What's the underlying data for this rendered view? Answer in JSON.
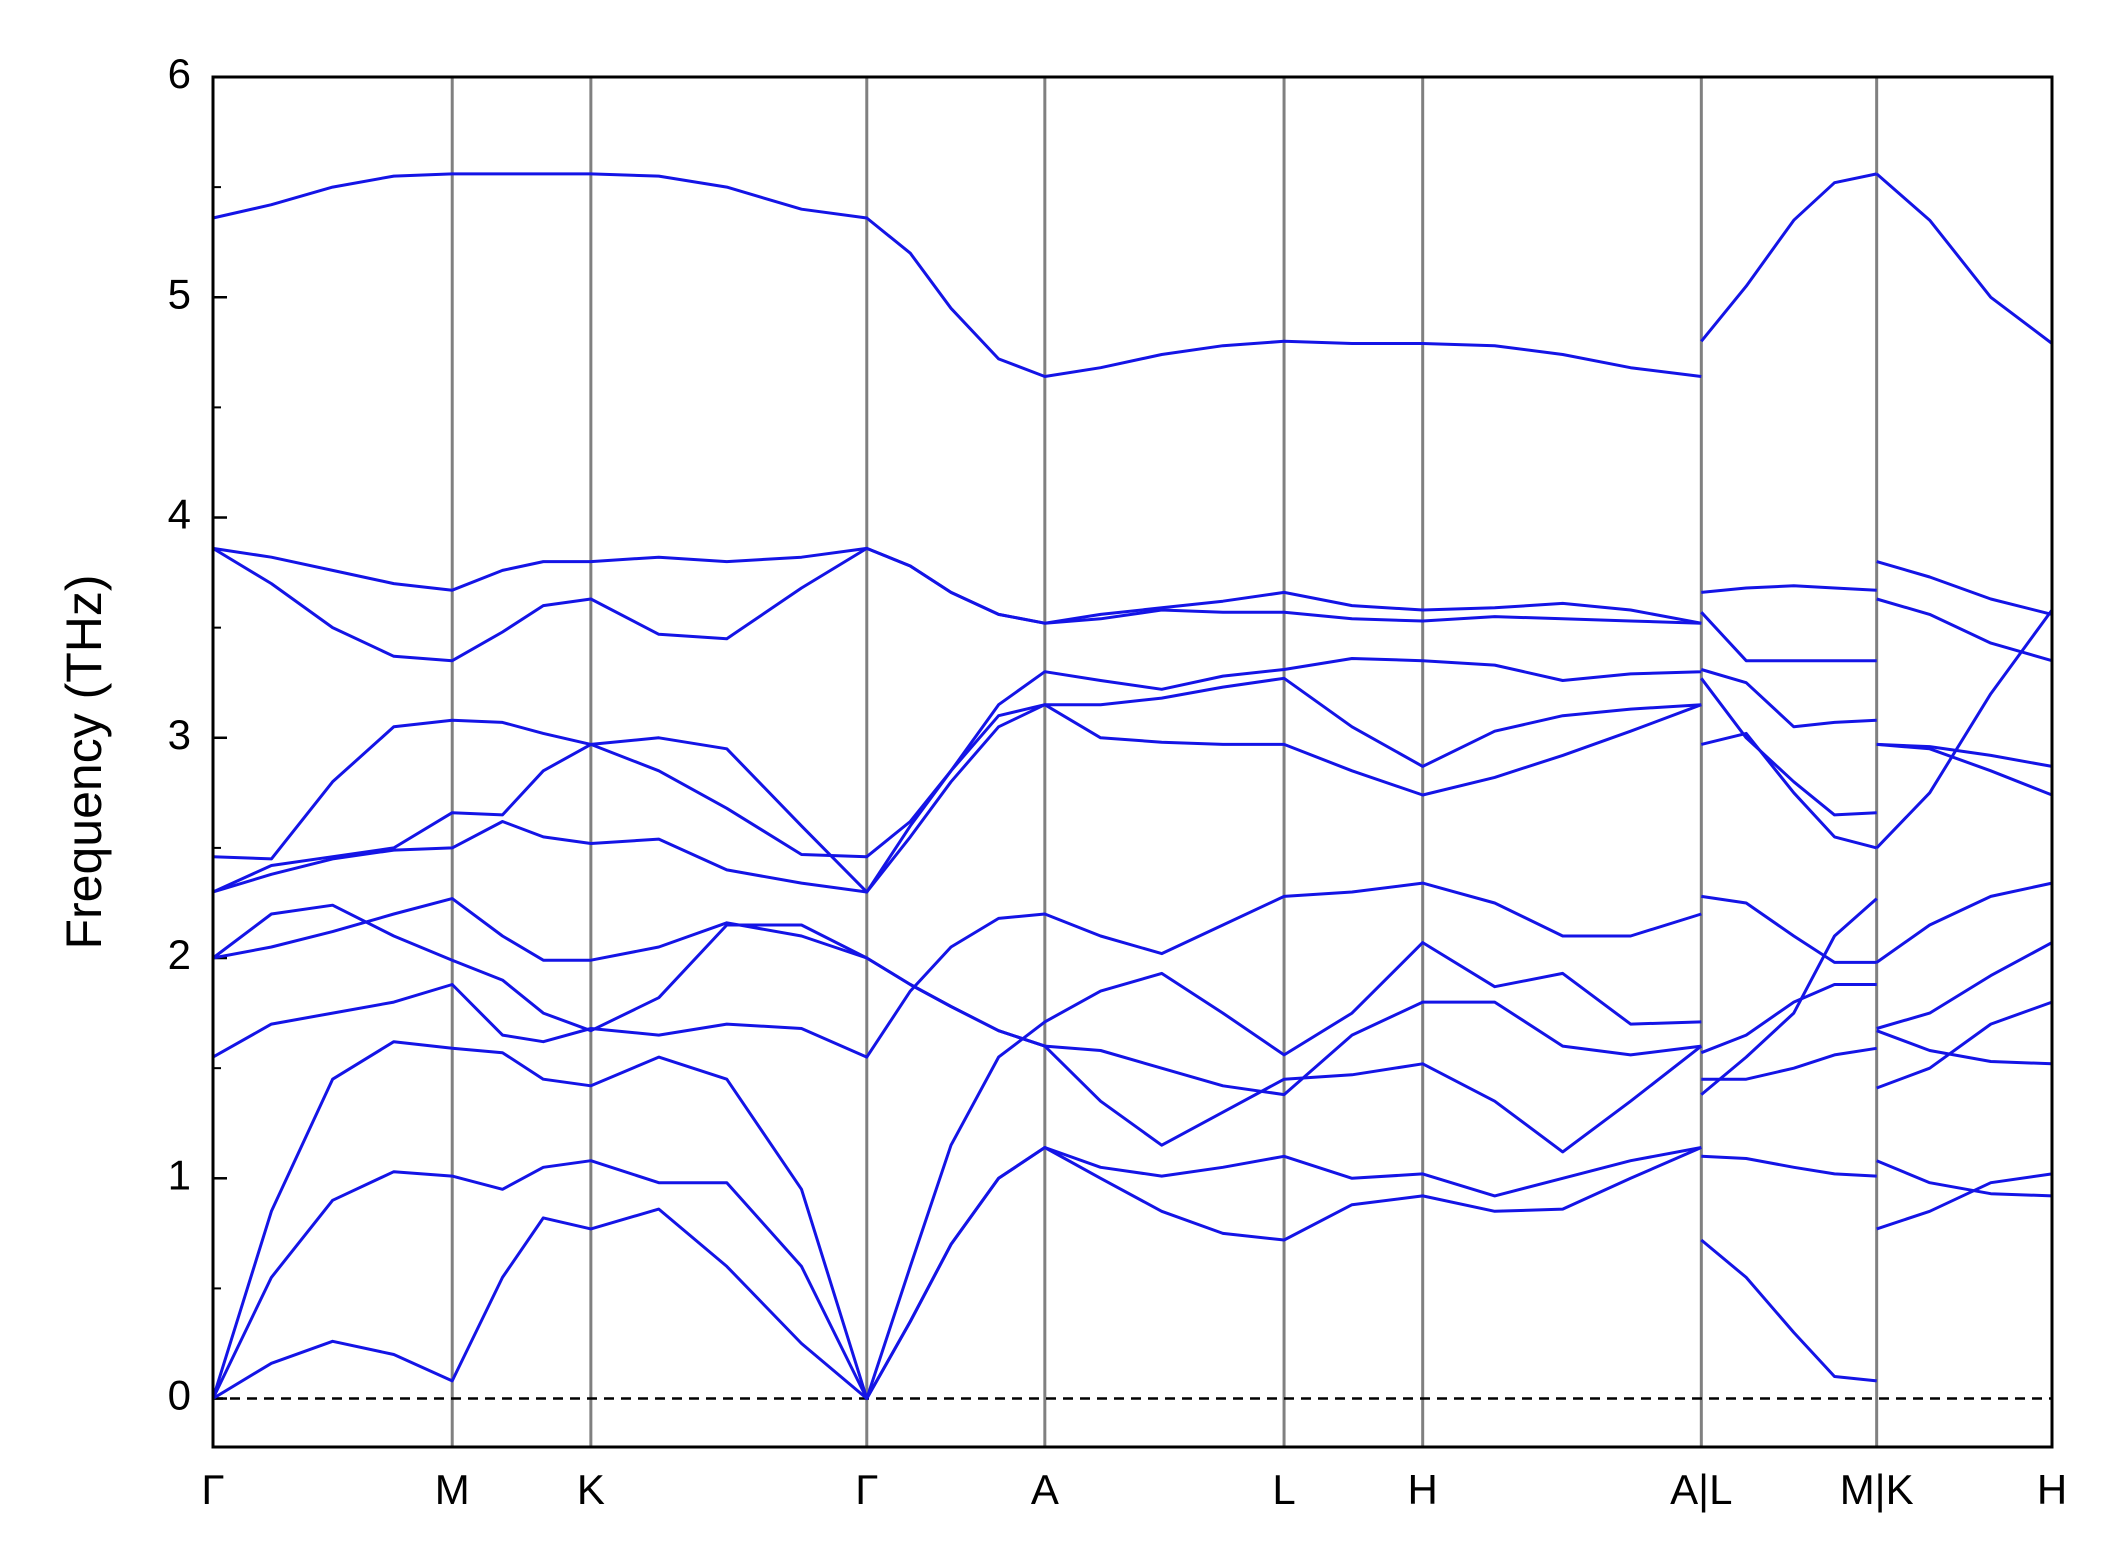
{
  "chart_data": {
    "type": "line",
    "ylabel": "Frequency (THz)",
    "color": "#1414e6",
    "xlim": [
      0,
      1353
    ],
    "ylim": [
      -0.22,
      6
    ],
    "xticks": [
      {
        "value": 0,
        "label": "Γ"
      },
      {
        "value": 176,
        "label": "M"
      },
      {
        "value": 278,
        "label": "K"
      },
      {
        "value": 481,
        "label": "Γ"
      },
      {
        "value": 612,
        "label": "A"
      },
      {
        "value": 788,
        "label": "L"
      },
      {
        "value": 890,
        "label": "H"
      },
      {
        "value": 1095,
        "label": "A|L"
      },
      {
        "value": 1224,
        "label": "M|K"
      },
      {
        "value": 1353,
        "label": "H"
      }
    ],
    "yticks": [
      0,
      1,
      2,
      3,
      4,
      5,
      6
    ],
    "yminorticks": [
      0.5,
      1.5,
      2.5,
      3.5,
      4.5,
      5.5
    ],
    "hlines": [
      0
    ],
    "x": [
      0,
      43,
      88,
      133,
      176,
      213,
      243,
      278,
      328,
      378,
      433,
      481,
      513,
      543,
      578,
      612,
      653,
      698,
      743,
      788,
      838,
      890,
      943,
      993,
      1043,
      1095,
      1095,
      1095,
      1128,
      1163,
      1193,
      1224,
      1224,
      1224,
      1263,
      1308,
      1353
    ],
    "series": [
      {
        "values": [
          5.36,
          5.42,
          5.5,
          5.55,
          5.56,
          5.56,
          5.56,
          5.56,
          5.55,
          5.5,
          5.4,
          5.36,
          5.2,
          4.95,
          4.72,
          4.64,
          4.68,
          4.74,
          4.78,
          4.8,
          4.79,
          4.79,
          4.78,
          4.74,
          4.68,
          4.64,
          null,
          4.8,
          5.05,
          5.35,
          5.52,
          5.56,
          null,
          5.56,
          5.35,
          5.0,
          4.79
        ]
      },
      {
        "values": [
          3.86,
          3.82,
          3.76,
          3.7,
          3.67,
          3.76,
          3.8,
          3.8,
          3.82,
          3.8,
          3.82,
          3.86,
          3.78,
          3.66,
          3.56,
          3.52,
          3.56,
          3.59,
          3.62,
          3.66,
          3.6,
          3.58,
          3.59,
          3.61,
          3.58,
          3.52,
          null,
          3.66,
          3.68,
          3.69,
          3.68,
          3.67,
          null,
          3.8,
          3.73,
          3.63,
          3.56
        ]
      },
      {
        "values": [
          3.86,
          3.7,
          3.5,
          3.37,
          3.35,
          3.48,
          3.6,
          3.63,
          3.47,
          3.45,
          3.68,
          3.86,
          3.78,
          3.66,
          3.56,
          3.52,
          3.54,
          3.58,
          3.57,
          3.57,
          3.54,
          3.53,
          3.55,
          3.54,
          3.53,
          3.52,
          null,
          3.57,
          3.35,
          3.35,
          3.35,
          3.35,
          null,
          3.63,
          3.56,
          3.43,
          3.35
        ]
      },
      {
        "values": [
          2.46,
          2.45,
          2.8,
          3.05,
          3.08,
          3.07,
          3.02,
          2.97,
          2.85,
          2.68,
          2.47,
          2.46,
          2.62,
          2.85,
          3.15,
          3.3,
          3.26,
          3.22,
          3.28,
          3.31,
          3.36,
          3.35,
          3.33,
          3.26,
          3.29,
          3.3,
          null,
          3.31,
          3.25,
          3.05,
          3.07,
          3.08,
          null,
          2.97,
          2.96,
          2.92,
          2.87
        ]
      },
      {
        "values": [
          2.3,
          2.42,
          2.46,
          2.5,
          2.66,
          2.65,
          2.85,
          2.97,
          3.0,
          2.95,
          2.6,
          2.3,
          2.6,
          2.85,
          3.1,
          3.15,
          3.15,
          3.18,
          3.23,
          3.27,
          3.05,
          2.87,
          3.03,
          3.1,
          3.13,
          3.15,
          null,
          3.27,
          3.0,
          2.8,
          2.65,
          2.66,
          null,
          2.97,
          2.95,
          2.85,
          2.74
        ]
      },
      {
        "values": [
          2.3,
          2.38,
          2.45,
          2.49,
          2.5,
          2.62,
          2.55,
          2.52,
          2.54,
          2.4,
          2.34,
          2.3,
          2.55,
          2.8,
          3.05,
          3.15,
          3.0,
          2.98,
          2.97,
          2.97,
          2.85,
          2.74,
          2.82,
          2.92,
          3.03,
          3.15,
          null,
          2.97,
          3.02,
          2.75,
          2.55,
          2.5,
          null,
          2.5,
          2.75,
          3.2,
          3.58
        ]
      },
      {
        "values": [
          2.0,
          2.05,
          2.12,
          2.2,
          2.27,
          2.1,
          1.99,
          1.99,
          2.05,
          2.16,
          2.1,
          2.0,
          1.88,
          1.78,
          1.67,
          1.6,
          1.58,
          1.5,
          1.42,
          1.38,
          1.65,
          1.8,
          1.8,
          1.6,
          1.56,
          1.6,
          null,
          1.57,
          1.65,
          1.8,
          1.88,
          1.88,
          null,
          1.68,
          1.75,
          1.92,
          2.07
        ]
      },
      {
        "values": [
          2.0,
          2.2,
          2.24,
          2.1,
          1.99,
          1.9,
          1.75,
          1.67,
          1.82,
          2.15,
          2.15,
          2.0,
          1.88,
          1.78,
          1.67,
          1.6,
          1.35,
          1.15,
          1.3,
          1.45,
          1.47,
          1.52,
          1.35,
          1.12,
          1.35,
          1.6,
          null,
          1.45,
          1.45,
          1.5,
          1.56,
          1.59,
          null,
          1.67,
          1.58,
          1.53,
          1.52
        ]
      },
      {
        "values": [
          1.55,
          1.7,
          1.75,
          1.8,
          1.88,
          1.65,
          1.62,
          1.68,
          1.65,
          1.7,
          1.68,
          1.55,
          1.85,
          2.05,
          2.18,
          2.2,
          2.1,
          2.02,
          2.15,
          2.28,
          2.3,
          2.34,
          2.25,
          2.1,
          2.1,
          2.2,
          null,
          2.28,
          2.25,
          2.1,
          1.98,
          1.98,
          null,
          1.98,
          2.15,
          2.28,
          2.34
        ]
      },
      {
        "values": [
          0,
          0.85,
          1.45,
          1.62,
          1.59,
          1.57,
          1.45,
          1.42,
          1.55,
          1.45,
          0.95,
          0,
          0.6,
          1.15,
          1.55,
          1.71,
          1.85,
          1.93,
          1.75,
          1.56,
          1.75,
          2.07,
          1.87,
          1.93,
          1.7,
          1.71,
          null,
          1.38,
          1.55,
          1.75,
          2.1,
          2.27,
          null,
          1.41,
          1.5,
          1.7,
          1.8
        ]
      },
      {
        "values": [
          0,
          0.55,
          0.9,
          1.03,
          1.01,
          0.95,
          1.05,
          1.08,
          0.98,
          0.98,
          0.6,
          0,
          0.35,
          0.7,
          1.0,
          1.14,
          1.05,
          1.01,
          1.05,
          1.1,
          1.0,
          1.02,
          0.92,
          1.0,
          1.08,
          1.14,
          null,
          1.1,
          1.09,
          1.05,
          1.02,
          1.01,
          null,
          1.08,
          0.98,
          0.93,
          0.92
        ]
      },
      {
        "values": [
          0,
          0.16,
          0.26,
          0.2,
          0.08,
          0.55,
          0.82,
          0.77,
          0.86,
          0.6,
          0.25,
          0,
          0.35,
          0.7,
          1.0,
          1.14,
          1.0,
          0.85,
          0.75,
          0.72,
          0.88,
          0.92,
          0.85,
          0.86,
          1.0,
          1.14,
          null,
          0.72,
          0.55,
          0.3,
          0.1,
          0.08,
          null,
          0.77,
          0.85,
          0.98,
          1.02
        ]
      }
    ]
  }
}
